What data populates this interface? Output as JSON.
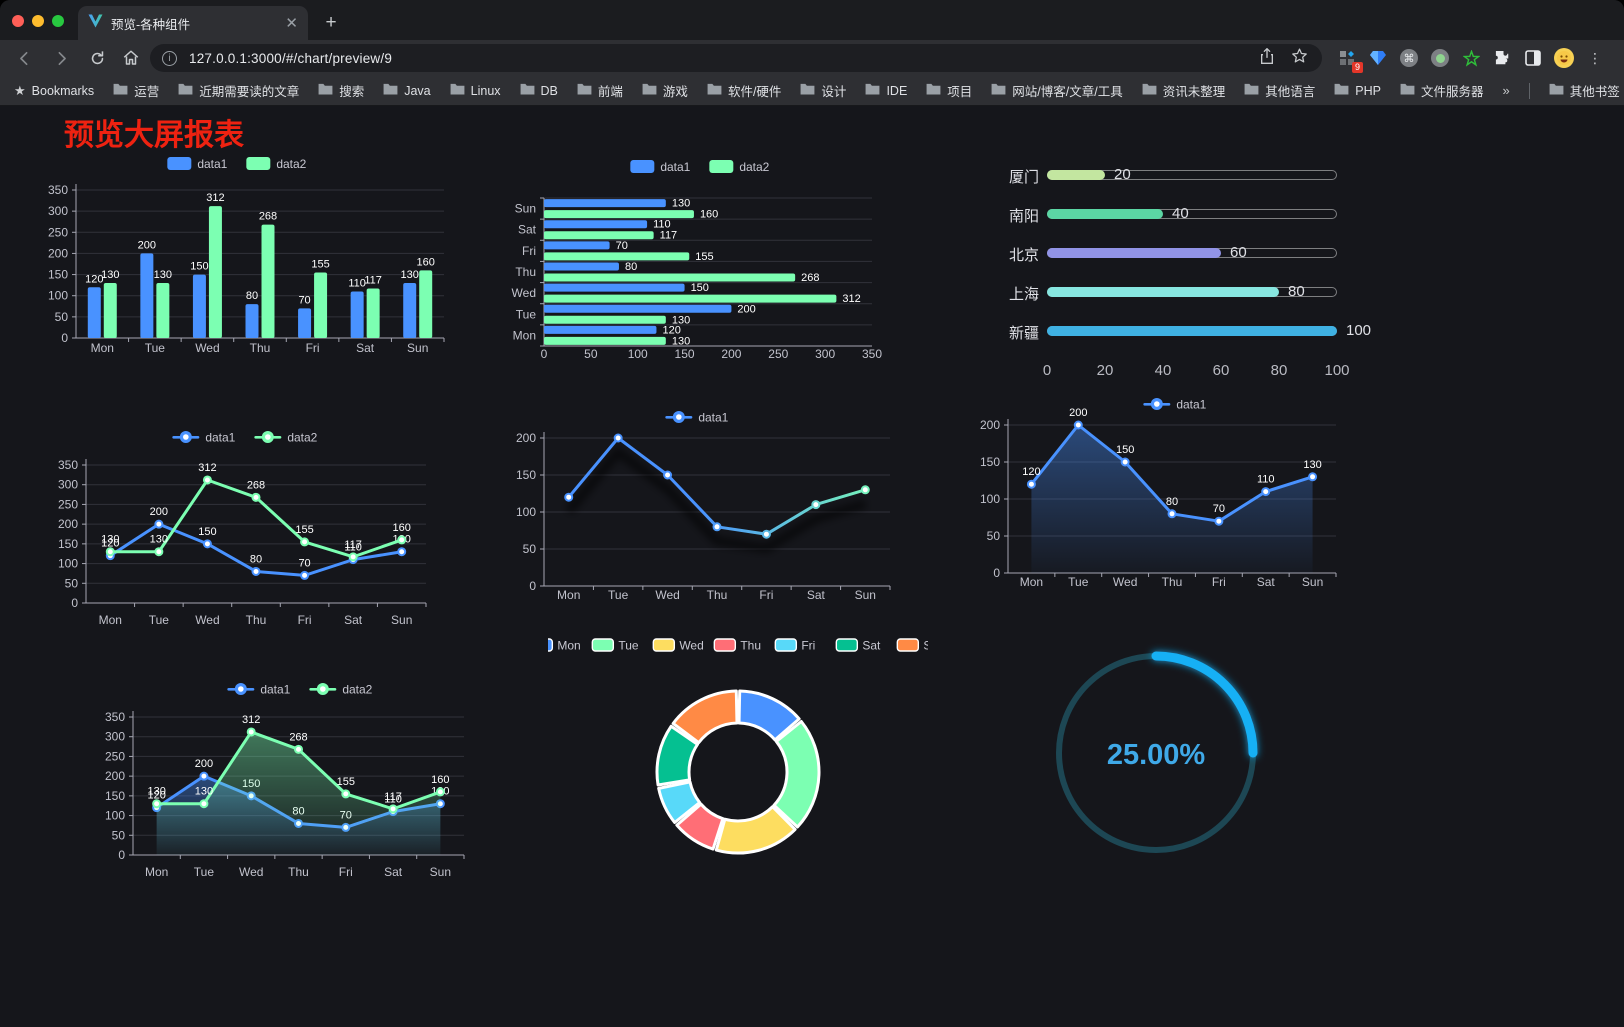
{
  "browser": {
    "tab_title": "预览-各种组件",
    "url": "127.0.0.1:3000/#/chart/preview/9",
    "badge_count": "9",
    "bookmarks": [
      "Bookmarks",
      "运营",
      "近期需要读的文章",
      "搜索",
      "Java",
      "Linux",
      "DB",
      "前端",
      "游戏",
      "软件/硬件",
      "设计",
      "IDE",
      "项目",
      "网站/博客/文章/工具",
      "资讯未整理",
      "其他语言",
      "PHP",
      "文件服务器"
    ],
    "bookmarks_overflow": "»",
    "other_bookmarks": "其他书签"
  },
  "page": {
    "heading": "预览大屏报表"
  },
  "colors": {
    "heading_red": "#ee2211",
    "data1_blue": "#4992ff",
    "data2_green": "#7cffb2",
    "gauge_blue": "#17b0f5",
    "palette": [
      "#4992ff",
      "#7cffb2",
      "#fddd60",
      "#ff6e76",
      "#58d9f9",
      "#05c091",
      "#ff8a45"
    ]
  },
  "chart_data": [
    {
      "id": "bar-vertical",
      "type": "bar",
      "categories": [
        "Mon",
        "Tue",
        "Wed",
        "Thu",
        "Fri",
        "Sat",
        "Sun"
      ],
      "series": [
        {
          "name": "data1",
          "color": "#4992ff",
          "values": [
            120,
            200,
            150,
            80,
            70,
            110,
            130
          ]
        },
        {
          "name": "data2",
          "color": "#7cffb2",
          "values": [
            130,
            130,
            312,
            268,
            155,
            117,
            160
          ]
        }
      ],
      "ylim": [
        0,
        350
      ],
      "ystep": 50,
      "legend_position": "top",
      "grid": true
    },
    {
      "id": "bar-horizontal",
      "type": "bar-horizontal",
      "categories_top_to_bottom": [
        "Sun",
        "Sat",
        "Fri",
        "Thu",
        "Wed",
        "Tue",
        "Mon"
      ],
      "series": [
        {
          "name": "data1",
          "color": "#4992ff",
          "values": [
            130,
            110,
            70,
            80,
            150,
            200,
            120
          ]
        },
        {
          "name": "data2",
          "color": "#7cffb2",
          "values": [
            160,
            117,
            155,
            268,
            312,
            130,
            130
          ]
        }
      ],
      "xlim": [
        0,
        350
      ],
      "xstep": 50,
      "legend_position": "top",
      "grid": true
    },
    {
      "id": "progress",
      "type": "bar-horizontal",
      "items": [
        {
          "label": "厦门",
          "value": 20,
          "color": "#c3e6a0"
        },
        {
          "label": "南阳",
          "value": 40,
          "color": "#5bd6a4"
        },
        {
          "label": "北京",
          "value": 60,
          "color": "#9193e6"
        },
        {
          "label": "上海",
          "value": 80,
          "color": "#87e6e0"
        },
        {
          "label": "新疆",
          "value": 100,
          "color": "#3fb1e3"
        }
      ],
      "axis_ticks": [
        0,
        20,
        40,
        60,
        80,
        100
      ],
      "xlim": [
        0,
        100
      ]
    },
    {
      "id": "line-basic",
      "type": "line",
      "categories": [
        "Mon",
        "Tue",
        "Wed",
        "Thu",
        "Fri",
        "Sat",
        "Sun"
      ],
      "series": [
        {
          "name": "data1",
          "color": "#4992ff",
          "values": [
            120,
            200,
            150,
            80,
            70,
            110,
            130
          ]
        },
        {
          "name": "data2",
          "color": "#7cffb2",
          "values": [
            130,
            130,
            312,
            268,
            155,
            117,
            160
          ]
        }
      ],
      "ylim": [
        0,
        350
      ],
      "ystep": 50,
      "legend_position": "top",
      "point_labels": true
    },
    {
      "id": "line-gradient",
      "type": "line",
      "categories": [
        "Mon",
        "Tue",
        "Wed",
        "Thu",
        "Fri",
        "Sat",
        "Sun"
      ],
      "series": [
        {
          "name": "data1",
          "color": "#4992ff",
          "gradient": [
            "#4992ff",
            "#7cffb2"
          ],
          "values": [
            120,
            200,
            150,
            80,
            70,
            110,
            130
          ]
        }
      ],
      "ylim": [
        0,
        200
      ],
      "ystep": 50,
      "legend_position": "top",
      "point_labels": false
    },
    {
      "id": "area-single",
      "type": "area",
      "categories": [
        "Mon",
        "Tue",
        "Wed",
        "Thu",
        "Fri",
        "Sat",
        "Sun"
      ],
      "series": [
        {
          "name": "data1",
          "color": "#4992ff",
          "values": [
            120,
            200,
            150,
            80,
            70,
            110,
            130
          ]
        }
      ],
      "ylim": [
        0,
        200
      ],
      "ystep": 50,
      "legend_position": "top",
      "point_labels": true
    },
    {
      "id": "area-double",
      "type": "area",
      "categories": [
        "Mon",
        "Tue",
        "Wed",
        "Thu",
        "Fri",
        "Sat",
        "Sun"
      ],
      "series": [
        {
          "name": "data1",
          "color": "#4992ff",
          "values": [
            120,
            200,
            150,
            80,
            70,
            110,
            130
          ]
        },
        {
          "name": "data2",
          "color": "#7cffb2",
          "values": [
            130,
            130,
            312,
            268,
            155,
            117,
            160
          ]
        }
      ],
      "ylim": [
        0,
        350
      ],
      "ystep": 50,
      "legend_position": "top",
      "point_labels": true
    },
    {
      "id": "donut",
      "type": "pie",
      "items": [
        {
          "label": "Mon",
          "value": 120,
          "color": "#4992ff"
        },
        {
          "label": "Tue",
          "value": 200,
          "color": "#7cffb2"
        },
        {
          "label": "Wed",
          "value": 150,
          "color": "#fddd60"
        },
        {
          "label": "Thu",
          "value": 80,
          "color": "#ff6e76"
        },
        {
          "label": "Fri",
          "value": 70,
          "color": "#58d9f9"
        },
        {
          "label": "Sat",
          "value": 110,
          "color": "#05c091"
        },
        {
          "label": "Sun",
          "value": 130,
          "color": "#ff8a45"
        }
      ],
      "legend_position": "top",
      "inner_radius_ratio": 0.6,
      "border_color": "#ffffff"
    },
    {
      "id": "gauge",
      "type": "gauge",
      "value": 25,
      "display": "25.00%",
      "color": "#17b0f5",
      "track_color": "#1d4754",
      "text_color": "#3fa9e8"
    }
  ]
}
